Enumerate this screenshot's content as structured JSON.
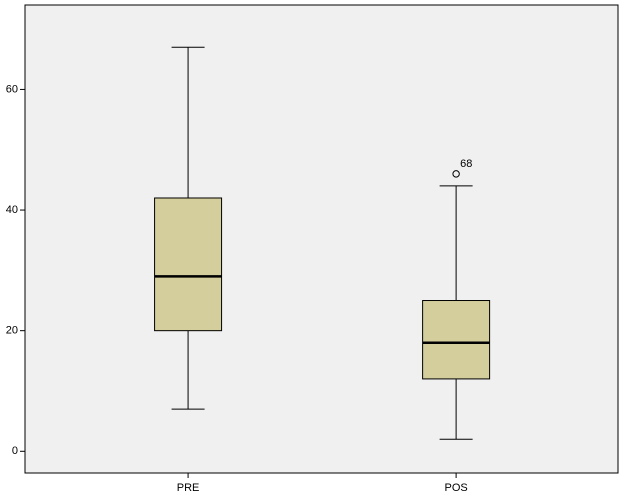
{
  "chart_data": {
    "type": "box",
    "categories": [
      "PRE",
      "POS"
    ],
    "boxes": [
      {
        "min": 7,
        "q1": 20,
        "median": 29,
        "q3": 42,
        "max": 67,
        "outliers": []
      },
      {
        "min": 2,
        "q1": 12,
        "median": 18,
        "q3": 25,
        "max": 44,
        "outliers": [
          {
            "value": 46,
            "label": "68"
          }
        ]
      }
    ],
    "color": "#d3ce9b",
    "background": "#f0f0f0",
    "ylim": [
      -3.6,
      74
    ],
    "yticks": [
      0,
      20,
      40,
      60
    ],
    "grid": false
  }
}
